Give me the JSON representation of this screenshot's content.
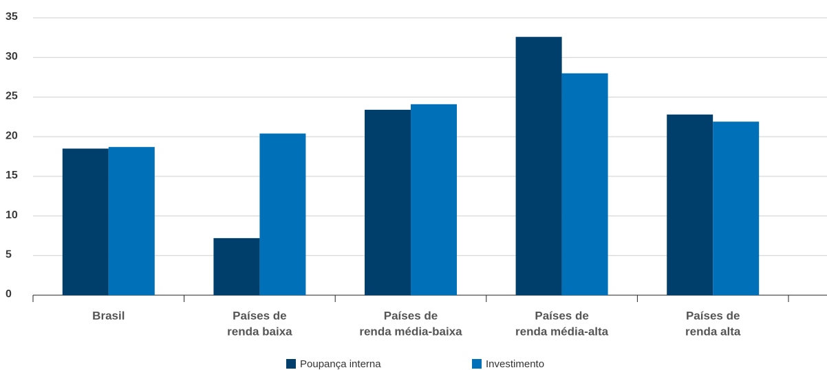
{
  "chart_data": {
    "type": "bar",
    "categories": [
      [
        "Brasil"
      ],
      [
        "Países de",
        "renda baixa"
      ],
      [
        "Países de",
        "renda média-baixa"
      ],
      [
        "Países de",
        "renda média-alta"
      ],
      [
        "Países de",
        "renda alta"
      ]
    ],
    "series": [
      {
        "name": "Poupança interna",
        "color": "#003f6b",
        "values": [
          18.5,
          7.2,
          23.4,
          32.6,
          22.8
        ]
      },
      {
        "name": "Investimento",
        "color": "#0070b8",
        "values": [
          18.7,
          20.4,
          24.1,
          28.0,
          21.9
        ]
      }
    ],
    "ylim": [
      0,
      35
    ],
    "yticks": [
      0,
      5,
      10,
      15,
      20,
      25,
      30,
      35
    ],
    "grid": true,
    "legend": "bottom"
  }
}
